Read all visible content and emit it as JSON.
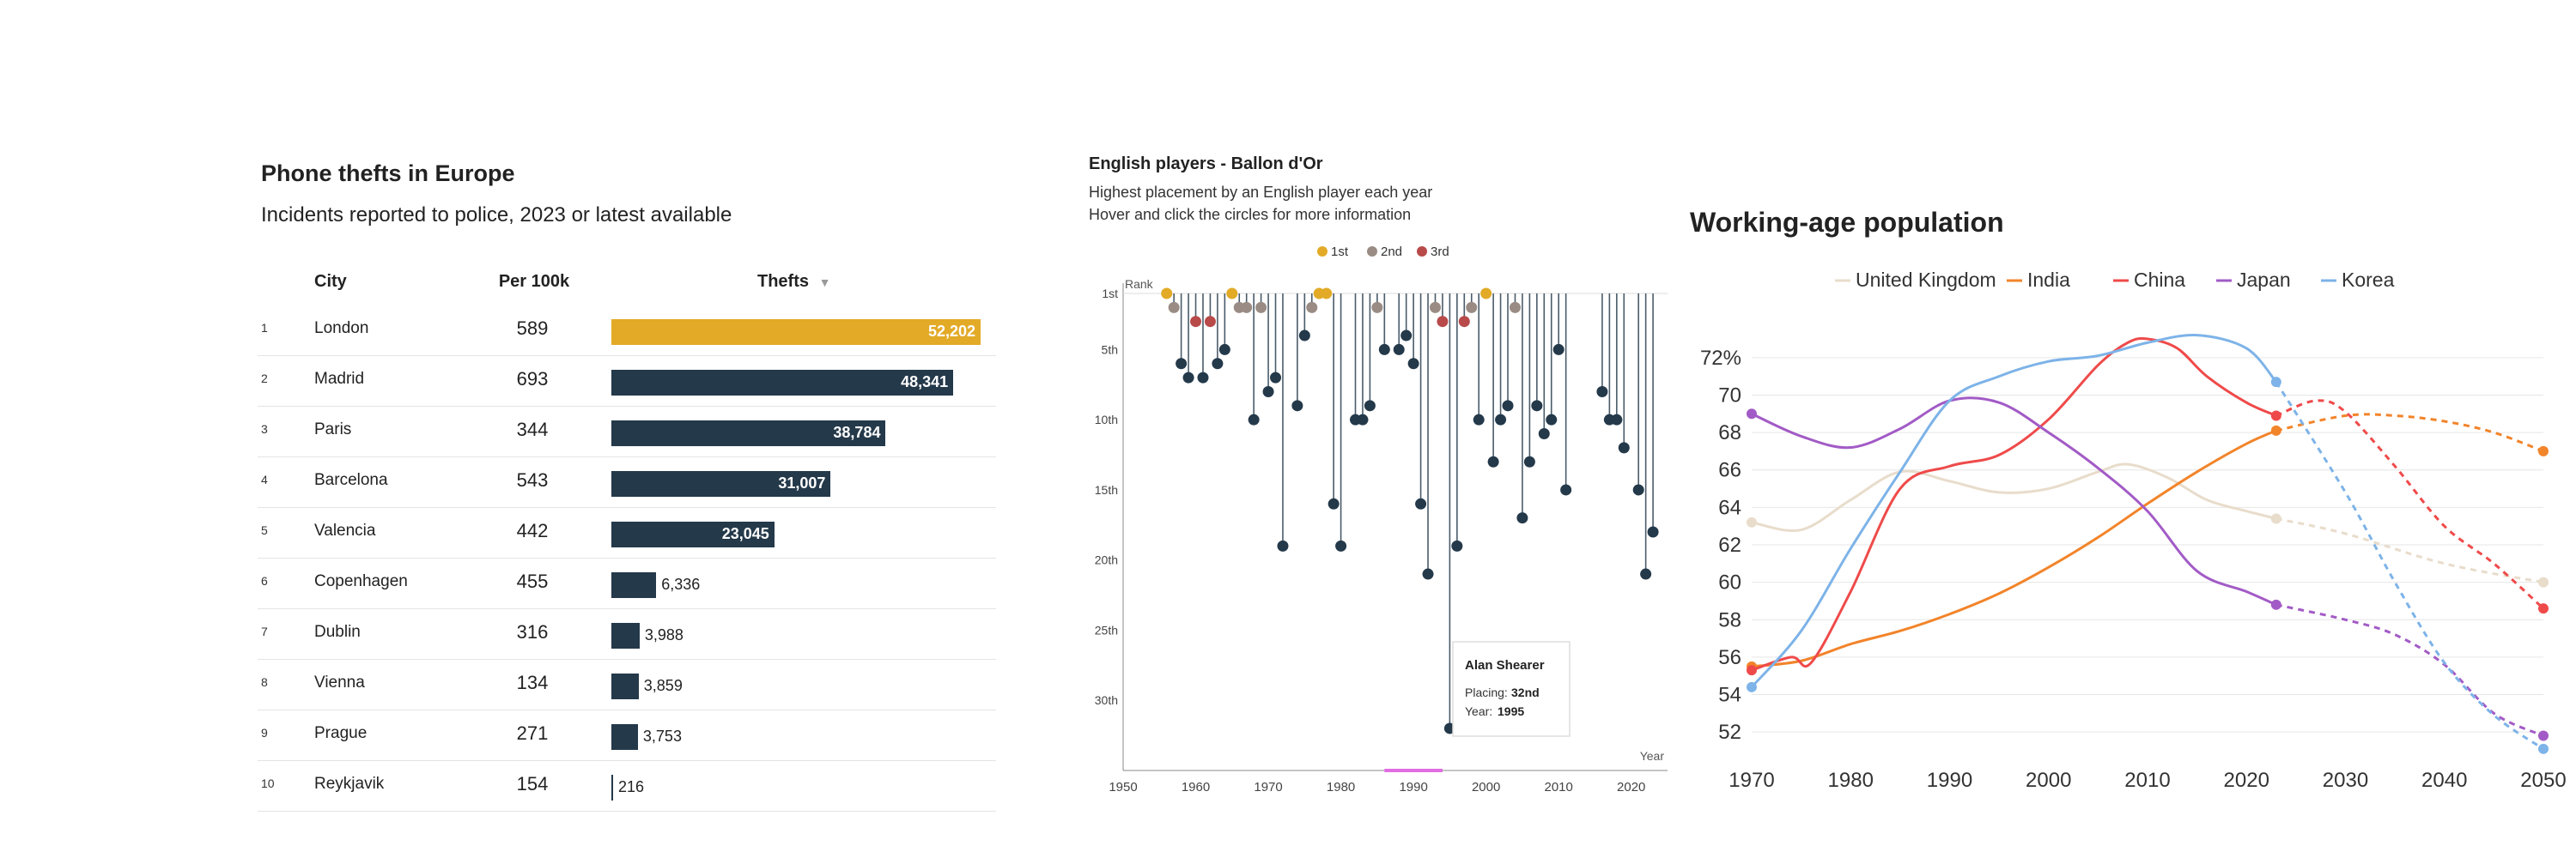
{
  "phone_thefts": {
    "title": "Phone thefts in Europe",
    "subtitle": "Incidents reported to police, 2023 or latest available",
    "headers": {
      "city": "City",
      "per100k": "Per 100k",
      "thefts": "Thefts"
    },
    "sort_icon": "sort-down-triangle",
    "highlight_color": "#e2aa26",
    "bar_color": "#24394a",
    "rows": [
      {
        "rank": "1",
        "city": "London",
        "per100k": "589",
        "thefts": 52202,
        "thefts_label": "52,202"
      },
      {
        "rank": "2",
        "city": "Madrid",
        "per100k": "693",
        "thefts": 48341,
        "thefts_label": "48,341"
      },
      {
        "rank": "3",
        "city": "Paris",
        "per100k": "344",
        "thefts": 38784,
        "thefts_label": "38,784"
      },
      {
        "rank": "4",
        "city": "Barcelona",
        "per100k": "543",
        "thefts": 31007,
        "thefts_label": "31,007"
      },
      {
        "rank": "5",
        "city": "Valencia",
        "per100k": "442",
        "thefts": 23045,
        "thefts_label": "23,045"
      },
      {
        "rank": "6",
        "city": "Copenhagen",
        "per100k": "455",
        "thefts": 6336,
        "thefts_label": "6,336"
      },
      {
        "rank": "7",
        "city": "Dublin",
        "per100k": "316",
        "thefts": 3988,
        "thefts_label": "3,988"
      },
      {
        "rank": "8",
        "city": "Vienna",
        "per100k": "134",
        "thefts": 3859,
        "thefts_label": "3,859"
      },
      {
        "rank": "9",
        "city": "Prague",
        "per100k": "271",
        "thefts": 3753,
        "thefts_label": "3,753"
      },
      {
        "rank": "10",
        "city": "Reykjavik",
        "per100k": "154",
        "thefts": 216,
        "thefts_label": "216"
      }
    ]
  },
  "chart_data": [
    {
      "type": "table",
      "title": "Phone thefts in Europe",
      "subtitle": "Incidents reported to police, 2023 or latest available",
      "columns": [
        "City",
        "Per 100k",
        "Thefts"
      ],
      "categories": [
        "London",
        "Madrid",
        "Paris",
        "Barcelona",
        "Valencia",
        "Copenhagen",
        "Dublin",
        "Vienna",
        "Prague",
        "Reykjavik"
      ],
      "series": [
        {
          "name": "Per 100k",
          "values": [
            589,
            693,
            344,
            543,
            442,
            455,
            316,
            134,
            271,
            154
          ]
        },
        {
          "name": "Thefts",
          "values": [
            52202,
            48341,
            38784,
            31007,
            23045,
            6336,
            3988,
            3859,
            3753,
            216
          ]
        }
      ]
    },
    {
      "type": "scatter",
      "title": "English players - Ballon d'Or",
      "subtitle_lines": [
        "Highest placement by an English player each year",
        "Hover and click the circles for more information"
      ],
      "xlabel": "Year",
      "ylabel": "Rank",
      "xlim": [
        1950,
        2025
      ],
      "ylim": [
        1,
        35
      ],
      "y_inverted": true,
      "x_ticks": [
        "1950",
        "1960",
        "1970",
        "1980",
        "1990",
        "2000",
        "2010",
        "2020"
      ],
      "y_ticks": [
        "1st",
        "5th",
        "10th",
        "15th",
        "20th",
        "25th",
        "30th"
      ],
      "y_tick_values": [
        1,
        5,
        10,
        15,
        20,
        25,
        30
      ],
      "legend": [
        "1st",
        "2nd",
        "3rd"
      ],
      "legend_colors": [
        "#e2aa26",
        "#9a8c85",
        "#b84a4a"
      ],
      "default_color": "#24394a",
      "x_highlight_range": [
        1986,
        1994
      ],
      "x_highlight_color": "#e26ce2",
      "points": [
        {
          "x": 1956,
          "y": 1,
          "c": "1st"
        },
        {
          "x": 1957,
          "y": 2,
          "c": "2nd"
        },
        {
          "x": 1958,
          "y": 6
        },
        {
          "x": 1959,
          "y": 7
        },
        {
          "x": 1960,
          "y": 3,
          "c": "3rd"
        },
        {
          "x": 1961,
          "y": 7
        },
        {
          "x": 1962,
          "y": 3,
          "c": "3rd"
        },
        {
          "x": 1963,
          "y": 6
        },
        {
          "x": 1964,
          "y": 5
        },
        {
          "x": 1965,
          "y": 1,
          "c": "1st"
        },
        {
          "x": 1966,
          "y": 2,
          "c": "2nd"
        },
        {
          "x": 1967,
          "y": 2,
          "c": "2nd"
        },
        {
          "x": 1968,
          "y": 10
        },
        {
          "x": 1969,
          "y": 2,
          "c": "2nd"
        },
        {
          "x": 1970,
          "y": 8
        },
        {
          "x": 1971,
          "y": 7
        },
        {
          "x": 1972,
          "y": 19
        },
        {
          "x": 1974,
          "y": 9
        },
        {
          "x": 1975,
          "y": 4
        },
        {
          "x": 1976,
          "y": 2,
          "c": "2nd"
        },
        {
          "x": 1977,
          "y": 1,
          "c": "1st"
        },
        {
          "x": 1978,
          "y": 1,
          "c": "1st"
        },
        {
          "x": 1979,
          "y": 16
        },
        {
          "x": 1980,
          "y": 19
        },
        {
          "x": 1982,
          "y": 10
        },
        {
          "x": 1983,
          "y": 10
        },
        {
          "x": 1984,
          "y": 9
        },
        {
          "x": 1985,
          "y": 2,
          "c": "2nd"
        },
        {
          "x": 1986,
          "y": 5
        },
        {
          "x": 1988,
          "y": 5
        },
        {
          "x": 1989,
          "y": 4
        },
        {
          "x": 1990,
          "y": 6
        },
        {
          "x": 1991,
          "y": 16
        },
        {
          "x": 1992,
          "y": 21
        },
        {
          "x": 1993,
          "y": 2,
          "c": "2nd"
        },
        {
          "x": 1994,
          "y": 3,
          "c": "3rd"
        },
        {
          "x": 1995,
          "y": 32
        },
        {
          "x": 1996,
          "y": 19
        },
        {
          "x": 1997,
          "y": 3,
          "c": "3rd"
        },
        {
          "x": 1998,
          "y": 2,
          "c": "2nd"
        },
        {
          "x": 1999,
          "y": 10
        },
        {
          "x": 2000,
          "y": 1,
          "c": "1st"
        },
        {
          "x": 2001,
          "y": 13
        },
        {
          "x": 2002,
          "y": 10
        },
        {
          "x": 2003,
          "y": 9
        },
        {
          "x": 2004,
          "y": 2,
          "c": "2nd"
        },
        {
          "x": 2005,
          "y": 17
        },
        {
          "x": 2006,
          "y": 13
        },
        {
          "x": 2007,
          "y": 9
        },
        {
          "x": 2008,
          "y": 11
        },
        {
          "x": 2009,
          "y": 10
        },
        {
          "x": 2010,
          "y": 5
        },
        {
          "x": 2011,
          "y": 15
        },
        {
          "x": 2016,
          "y": 8
        },
        {
          "x": 2017,
          "y": 10
        },
        {
          "x": 2018,
          "y": 10
        },
        {
          "x": 2019,
          "y": 12
        },
        {
          "x": 2021,
          "y": 15
        },
        {
          "x": 2022,
          "y": 21
        },
        {
          "x": 2023,
          "y": 18
        }
      ],
      "tooltip": {
        "name": "Alan Shearer",
        "placing_label": "Placing:",
        "placing": "32nd",
        "year_label": "Year:",
        "year": "1995"
      }
    },
    {
      "type": "line",
      "title": "Working-age population",
      "xlim": [
        1970,
        2050
      ],
      "ylim": [
        51,
        73
      ],
      "x_ticks": [
        "1970",
        "1980",
        "1990",
        "2000",
        "2010",
        "2020",
        "2030",
        "2040",
        "2050"
      ],
      "y_ticks": [
        "52",
        "54",
        "56",
        "58",
        "60",
        "62",
        "64",
        "66",
        "68",
        "70",
        "72%"
      ],
      "y_tick_values": [
        52,
        54,
        56,
        58,
        60,
        62,
        64,
        66,
        68,
        70,
        72
      ],
      "legend_placement": "top",
      "projection_start": 2023,
      "series": [
        {
          "name": "United Kingdom",
          "color": "#e8dccb",
          "x": [
            1970,
            1975,
            1980,
            1985,
            1990,
            1995,
            2000,
            2005,
            2008,
            2012,
            2016,
            2020,
            2023,
            2030,
            2040,
            2050
          ],
          "values": [
            63.2,
            62.8,
            64.4,
            65.9,
            65.4,
            64.8,
            65.0,
            65.9,
            66.3,
            65.6,
            64.4,
            63.8,
            63.4,
            62.6,
            61.0,
            60.0
          ]
        },
        {
          "name": "India",
          "color": "#f2842a",
          "x": [
            1970,
            1975,
            1980,
            1985,
            1990,
            1995,
            2000,
            2005,
            2010,
            2015,
            2020,
            2023,
            2030,
            2035,
            2040,
            2045,
            2050
          ],
          "values": [
            55.5,
            55.8,
            56.7,
            57.4,
            58.3,
            59.4,
            60.8,
            62.4,
            64.2,
            65.9,
            67.4,
            68.1,
            68.9,
            68.9,
            68.6,
            68.0,
            67.0
          ]
        },
        {
          "name": "China",
          "color": "#ef4a4a",
          "x": [
            1970,
            1974,
            1976,
            1980,
            1985,
            1990,
            1995,
            2000,
            2005,
            2008,
            2010,
            2013,
            2016,
            2020,
            2023,
            2027,
            2030,
            2035,
            2040,
            2045,
            2050
          ],
          "values": [
            55.3,
            56.0,
            55.7,
            59.5,
            65.0,
            66.2,
            66.8,
            68.7,
            71.6,
            72.8,
            73.0,
            72.5,
            71.0,
            69.6,
            68.9,
            69.7,
            69.1,
            66.2,
            63.0,
            61.0,
            58.6
          ]
        },
        {
          "name": "Japan",
          "color": "#a25bc6",
          "x": [
            1970,
            1975,
            1980,
            1985,
            1990,
            1995,
            2000,
            2005,
            2010,
            2015,
            2020,
            2023,
            2030,
            2035,
            2040,
            2045,
            2050
          ],
          "values": [
            69.0,
            67.8,
            67.2,
            68.2,
            69.7,
            69.6,
            68.0,
            66.1,
            63.8,
            60.6,
            59.5,
            58.8,
            58.0,
            57.2,
            55.6,
            53.0,
            51.8
          ]
        },
        {
          "name": "Korea",
          "color": "#7db3e8",
          "x": [
            1970,
            1975,
            1980,
            1985,
            1990,
            1995,
            2000,
            2005,
            2010,
            2015,
            2020,
            2023,
            2030,
            2035,
            2040,
            2045,
            2050
          ],
          "values": [
            54.4,
            57.4,
            61.8,
            65.9,
            69.7,
            71.0,
            71.8,
            72.1,
            72.8,
            73.2,
            72.5,
            70.7,
            64.8,
            60.0,
            55.7,
            52.9,
            51.1
          ]
        }
      ]
    }
  ]
}
